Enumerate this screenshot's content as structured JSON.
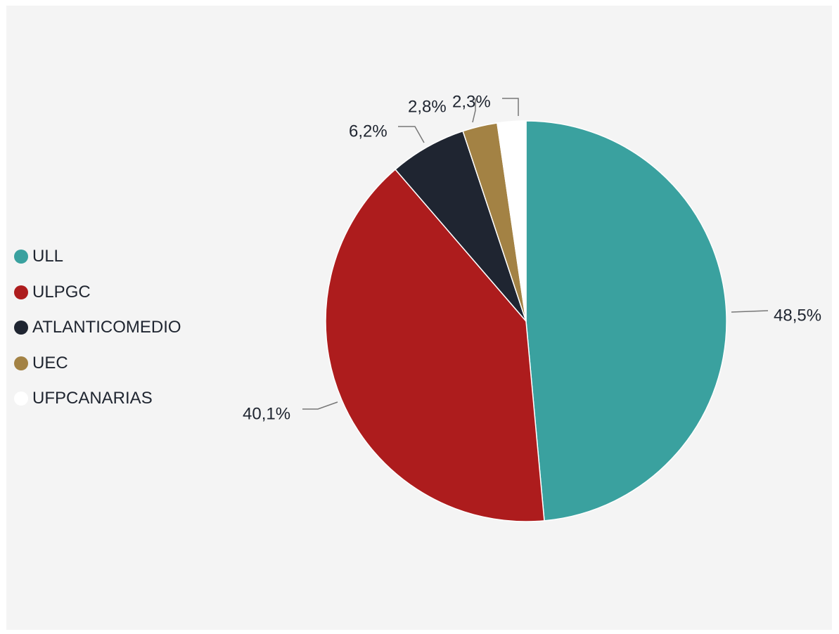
{
  "chart_data": {
    "type": "pie",
    "categories": [
      "ULL",
      "ULPGC",
      "ATLANTICOMEDIO",
      "UEC",
      "UFPCANARIAS"
    ],
    "values": [
      48.5,
      40.1,
      6.2,
      2.8,
      2.3
    ],
    "value_labels": [
      "48,5%",
      "40,1%",
      "6,2%",
      "2,8%",
      "2,3%"
    ],
    "colors": [
      "#3aa19f",
      "#ad1c1d",
      "#1f2531",
      "#a38244",
      "#ffffff"
    ],
    "legend_position": "left",
    "start_angle": "top, clockwise"
  },
  "legend": {
    "items": [
      {
        "label": "ULL",
        "color": "#3aa19f"
      },
      {
        "label": "ULPGC",
        "color": "#ad1c1d"
      },
      {
        "label": "ATLANTICOMEDIO",
        "color": "#1f2531"
      },
      {
        "label": "UEC",
        "color": "#a38244"
      },
      {
        "label": "UFPCANARIAS",
        "color": "#ffffff"
      }
    ]
  }
}
